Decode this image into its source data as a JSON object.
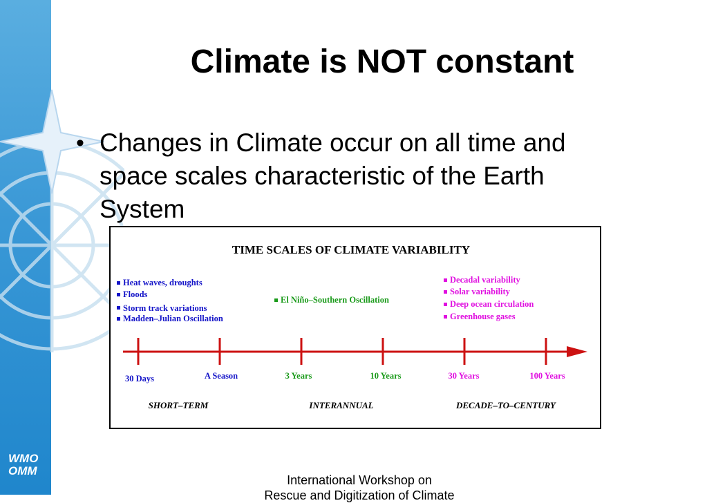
{
  "slide": {
    "title": "Climate is NOT constant",
    "bullet": "Changes in Climate occur on all time and space scales characteristic of the Earth System",
    "logo": {
      "line1": "WMO",
      "line2": "OMM"
    },
    "footer": {
      "line1": "International Workshop on",
      "line2": "Rescue and Digitization of Climate"
    }
  },
  "figure": {
    "title": "TIME SCALES OF CLIMATE VARIABILITY",
    "short_term_items": [
      "Heat waves, droughts",
      "Floods",
      "Storm track variations",
      "Madden–Julian Oscillation"
    ],
    "interannual_items": [
      "El Niño–Southern Oscillation"
    ],
    "decadal_items": [
      "Decadal variability",
      "Solar variability",
      "Deep ocean circulation",
      "Greenhouse gases"
    ],
    "ticks": [
      "30 Days",
      "A Season",
      "3 Years",
      "10 Years",
      "30 Years",
      "100 Years"
    ],
    "categories": [
      "SHORT–TERM",
      "INTERANNUAL",
      "DECADE–TO–CENTURY"
    ],
    "colors": {
      "blue": "#1414c8",
      "green": "#1a9a1a",
      "magenta": "#e010e0",
      "axis": "#cc1111"
    }
  }
}
